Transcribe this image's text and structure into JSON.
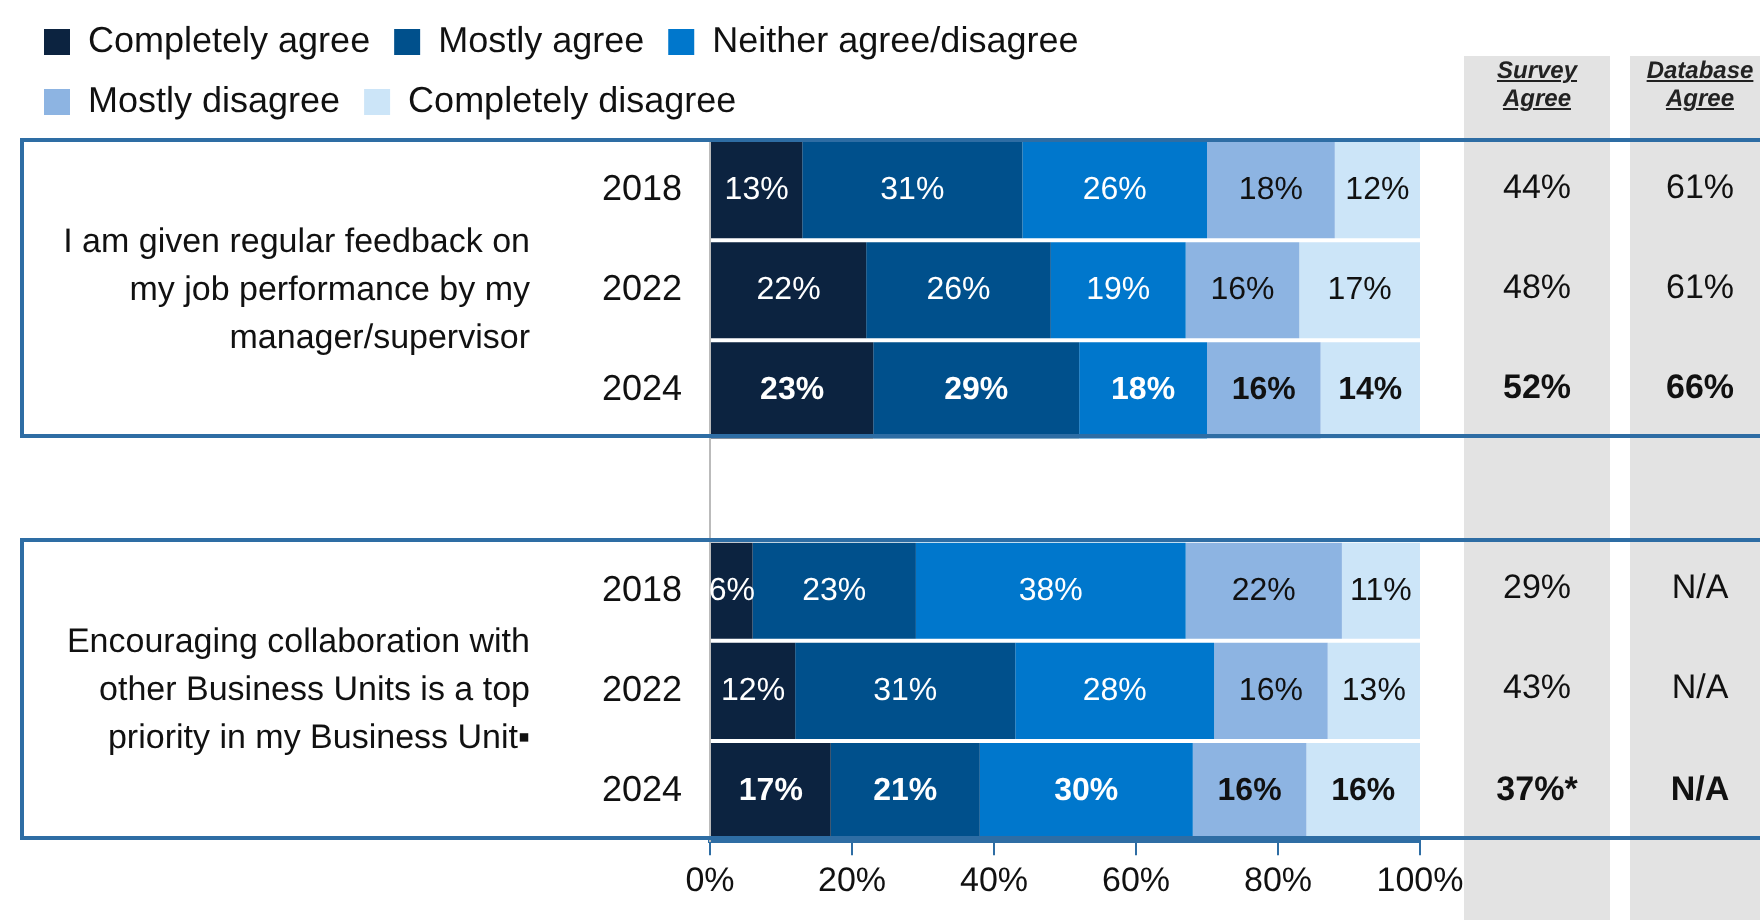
{
  "chart_data": {
    "type": "bar",
    "orientation": "horizontal",
    "stacked": true,
    "legend": "top",
    "grid": false,
    "categories": [
      "2018",
      "2022",
      "2024",
      null,
      "2018",
      "2022",
      "2024"
    ],
    "series": [
      {
        "name": "Completely agree",
        "color": "#0c2340",
        "values": [
          13,
          22,
          23,
          null,
          6,
          12,
          17
        ],
        "value_labels": [
          "13%",
          "22%",
          "23%",
          null,
          "6%",
          "12%",
          "17%"
        ]
      },
      {
        "name": "Mostly agree",
        "color": "#00508c",
        "values": [
          31,
          26,
          29,
          null,
          23,
          31,
          21
        ],
        "value_labels": [
          "31%",
          "26%",
          "29%",
          null,
          "23%",
          "31%",
          "21%"
        ]
      },
      {
        "name": "Neither agree/disagree",
        "color": "#0077cc",
        "values": [
          26,
          19,
          18,
          null,
          38,
          28,
          30
        ],
        "value_labels": [
          "26%",
          "19%",
          "18%",
          null,
          "38%",
          "28%",
          "30%"
        ]
      },
      {
        "name": "Mostly disagree",
        "color": "#8db4e2",
        "values": [
          18,
          16,
          16,
          null,
          22,
          16,
          16
        ],
        "value_labels": [
          "18%",
          "16%",
          "16%",
          null,
          "22%",
          "16%",
          "16%"
        ]
      },
      {
        "name": "Completely disagree",
        "color": "#cce5f8",
        "values": [
          12,
          17,
          14,
          null,
          11,
          13,
          16
        ],
        "value_labels": [
          "12%",
          "17%",
          "14%",
          null,
          "11%",
          "13%",
          "16%"
        ]
      }
    ],
    "xlim": [
      0,
      100
    ],
    "xticks": [
      {
        "value": 0,
        "label": "0%"
      },
      {
        "value": 20,
        "label": "20%"
      },
      {
        "value": 40,
        "label": "40%"
      },
      {
        "value": 60,
        "label": "60%"
      },
      {
        "value": 80,
        "label": "80%"
      },
      {
        "value": 100,
        "label": "100%"
      }
    ],
    "annotations": [
      "I am given regular feedback on my job performance by my manager/supervisor",
      "Encouraging collaboration with other Business Units is a top priority in my Business Unit▪",
      "Survey Agree",
      "Database Agree",
      "44%",
      "61%",
      "48%",
      "61%",
      "52%",
      "66%",
      "29%",
      "N/A",
      "43%",
      "N/A",
      "37%*",
      "N/A"
    ]
  }
}
